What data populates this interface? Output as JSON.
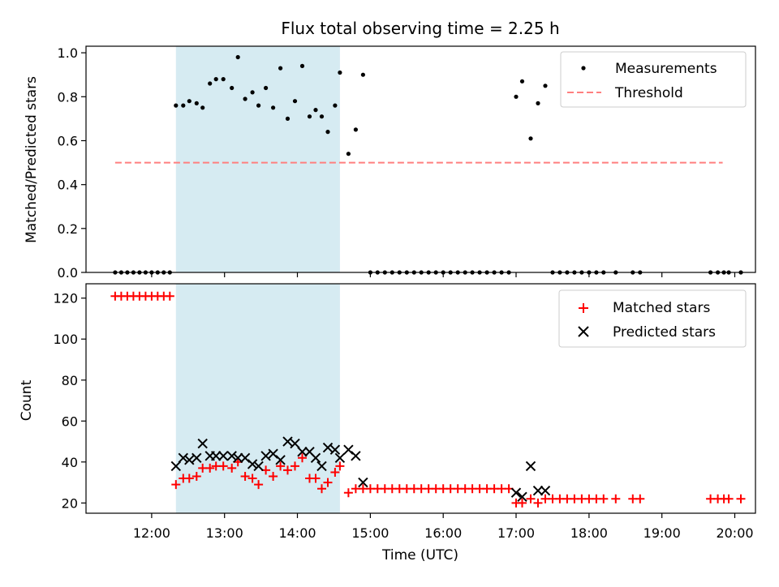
{
  "title": "Flux total observing time = 2.25 h",
  "colors": {
    "shade": "#add8e6",
    "threshold": "#ff7f7f",
    "matched": "#ff0000",
    "predicted": "#000000",
    "measurement": "#000000"
  },
  "chart_data": [
    {
      "type": "scatter",
      "ylabel": "Matched/Predicted stars",
      "xlim": [
        "11:06",
        "20:17"
      ],
      "ylim": [
        0,
        1.03
      ],
      "yticks": [
        "0.0",
        "0.2",
        "0.4",
        "0.6",
        "0.8",
        "1.0"
      ],
      "shaded_range": [
        "12:20",
        "14:35"
      ],
      "legend": {
        "position": "top-right",
        "entries": [
          "Measurements",
          "Threshold"
        ]
      },
      "threshold": {
        "name": "Threshold",
        "value": 0.5,
        "x_range": [
          "11:30",
          "19:50"
        ]
      },
      "series": [
        {
          "name": "Measurements",
          "points": [
            [
              "11:30",
              0
            ],
            [
              "11:35",
              0
            ],
            [
              "11:40",
              0
            ],
            [
              "11:45",
              0
            ],
            [
              "11:50",
              0
            ],
            [
              "11:55",
              0
            ],
            [
              "12:00",
              0
            ],
            [
              "12:05",
              0
            ],
            [
              "12:10",
              0
            ],
            [
              "12:15",
              0
            ],
            [
              "12:20",
              0.76
            ],
            [
              "12:26",
              0.76
            ],
            [
              "12:31",
              0.78
            ],
            [
              "12:37",
              0.77
            ],
            [
              "12:42",
              0.75
            ],
            [
              "12:48",
              0.86
            ],
            [
              "12:53",
              0.88
            ],
            [
              "12:59",
              0.88
            ],
            [
              "13:06",
              0.84
            ],
            [
              "13:11",
              0.98
            ],
            [
              "13:17",
              0.79
            ],
            [
              "13:23",
              0.82
            ],
            [
              "13:28",
              0.76
            ],
            [
              "13:34",
              0.84
            ],
            [
              "13:40",
              0.75
            ],
            [
              "13:46",
              0.93
            ],
            [
              "13:52",
              0.7
            ],
            [
              "13:58",
              0.78
            ],
            [
              "14:04",
              0.94
            ],
            [
              "14:10",
              0.71
            ],
            [
              "14:15",
              0.74
            ],
            [
              "14:20",
              0.71
            ],
            [
              "14:25",
              0.64
            ],
            [
              "14:31",
              0.76
            ],
            [
              "14:35",
              0.91
            ],
            [
              "14:42",
              0.54
            ],
            [
              "14:48",
              0.65
            ],
            [
              "14:54",
              0.9
            ],
            [
              "15:00",
              0
            ],
            [
              "15:06",
              0
            ],
            [
              "15:12",
              0
            ],
            [
              "15:18",
              0
            ],
            [
              "15:24",
              0
            ],
            [
              "15:30",
              0
            ],
            [
              "15:36",
              0
            ],
            [
              "15:42",
              0
            ],
            [
              "15:48",
              0
            ],
            [
              "15:54",
              0
            ],
            [
              "16:00",
              0
            ],
            [
              "16:06",
              0
            ],
            [
              "16:12",
              0
            ],
            [
              "16:18",
              0
            ],
            [
              "16:24",
              0
            ],
            [
              "16:30",
              0
            ],
            [
              "16:36",
              0
            ],
            [
              "16:42",
              0
            ],
            [
              "16:48",
              0
            ],
            [
              "16:54",
              0
            ],
            [
              "17:00",
              0.8
            ],
            [
              "17:05",
              0.87
            ],
            [
              "17:12",
              0.61
            ],
            [
              "17:18",
              0.77
            ],
            [
              "17:24",
              0.85
            ],
            [
              "17:30",
              0
            ],
            [
              "17:36",
              0
            ],
            [
              "17:42",
              0
            ],
            [
              "17:48",
              0
            ],
            [
              "17:54",
              0
            ],
            [
              "18:00",
              0
            ],
            [
              "18:06",
              0
            ],
            [
              "18:12",
              0
            ],
            [
              "18:22",
              0
            ],
            [
              "18:36",
              0
            ],
            [
              "18:42",
              0
            ],
            [
              "19:40",
              0
            ],
            [
              "19:46",
              0
            ],
            [
              "19:51",
              0
            ],
            [
              "19:55",
              0
            ],
            [
              "20:05",
              0
            ]
          ]
        }
      ]
    },
    {
      "type": "scatter",
      "xlabel": "Time (UTC)",
      "ylabel": "Count",
      "xlim": [
        "11:06",
        "20:17"
      ],
      "ylim": [
        15,
        127
      ],
      "xticks": [
        "12:00",
        "13:00",
        "14:00",
        "15:00",
        "16:00",
        "17:00",
        "18:00",
        "19:00",
        "20:00"
      ],
      "yticks": [
        "20",
        "40",
        "60",
        "80",
        "100",
        "120"
      ],
      "shaded_range": [
        "12:20",
        "14:35"
      ],
      "legend": {
        "position": "top-right",
        "entries": [
          "Matched stars",
          "Predicted stars"
        ]
      },
      "series": [
        {
          "name": "Matched stars",
          "marker": "plus",
          "points": [
            [
              "11:30",
              121
            ],
            [
              "11:35",
              121
            ],
            [
              "11:40",
              121
            ],
            [
              "11:45",
              121
            ],
            [
              "11:50",
              121
            ],
            [
              "11:55",
              121
            ],
            [
              "12:00",
              121
            ],
            [
              "12:05",
              121
            ],
            [
              "12:10",
              121
            ],
            [
              "12:15",
              121
            ],
            [
              "12:20",
              29
            ],
            [
              "12:26",
              32
            ],
            [
              "12:31",
              32
            ],
            [
              "12:37",
              33
            ],
            [
              "12:42",
              37
            ],
            [
              "12:48",
              37
            ],
            [
              "12:53",
              38
            ],
            [
              "12:59",
              38
            ],
            [
              "13:06",
              37
            ],
            [
              "13:11",
              40
            ],
            [
              "13:17",
              33
            ],
            [
              "13:23",
              32
            ],
            [
              "13:28",
              29
            ],
            [
              "13:34",
              36
            ],
            [
              "13:40",
              33
            ],
            [
              "13:46",
              38
            ],
            [
              "13:52",
              36
            ],
            [
              "13:58",
              38
            ],
            [
              "14:04",
              42
            ],
            [
              "14:10",
              32
            ],
            [
              "14:15",
              32
            ],
            [
              "14:20",
              27
            ],
            [
              "14:25",
              30
            ],
            [
              "14:31",
              35
            ],
            [
              "14:35",
              38
            ],
            [
              "14:42",
              25
            ],
            [
              "14:48",
              27
            ],
            [
              "14:54",
              27
            ],
            [
              "15:00",
              27
            ],
            [
              "15:06",
              27
            ],
            [
              "15:12",
              27
            ],
            [
              "15:18",
              27
            ],
            [
              "15:24",
              27
            ],
            [
              "15:30",
              27
            ],
            [
              "15:36",
              27
            ],
            [
              "15:42",
              27
            ],
            [
              "15:48",
              27
            ],
            [
              "15:54",
              27
            ],
            [
              "16:00",
              27
            ],
            [
              "16:06",
              27
            ],
            [
              "16:12",
              27
            ],
            [
              "16:18",
              27
            ],
            [
              "16:24",
              27
            ],
            [
              "16:30",
              27
            ],
            [
              "16:36",
              27
            ],
            [
              "16:42",
              27
            ],
            [
              "16:48",
              27
            ],
            [
              "16:54",
              27
            ],
            [
              "17:00",
              20
            ],
            [
              "17:05",
              20
            ],
            [
              "17:12",
              22
            ],
            [
              "17:18",
              20
            ],
            [
              "17:24",
              22
            ],
            [
              "17:30",
              22
            ],
            [
              "17:36",
              22
            ],
            [
              "17:42",
              22
            ],
            [
              "17:48",
              22
            ],
            [
              "17:54",
              22
            ],
            [
              "18:00",
              22
            ],
            [
              "18:06",
              22
            ],
            [
              "18:12",
              22
            ],
            [
              "18:22",
              22
            ],
            [
              "18:36",
              22
            ],
            [
              "18:42",
              22
            ],
            [
              "19:40",
              22
            ],
            [
              "19:46",
              22
            ],
            [
              "19:51",
              22
            ],
            [
              "19:55",
              22
            ],
            [
              "20:05",
              22
            ]
          ]
        },
        {
          "name": "Predicted stars",
          "marker": "x",
          "points": [
            [
              "12:20",
              38
            ],
            [
              "12:26",
              42
            ],
            [
              "12:31",
              41
            ],
            [
              "12:37",
              42
            ],
            [
              "12:42",
              49
            ],
            [
              "12:48",
              43
            ],
            [
              "12:53",
              43
            ],
            [
              "12:59",
              43
            ],
            [
              "13:06",
              43
            ],
            [
              "13:11",
              42
            ],
            [
              "13:17",
              42
            ],
            [
              "13:23",
              39
            ],
            [
              "13:28",
              38
            ],
            [
              "13:34",
              43
            ],
            [
              "13:40",
              44
            ],
            [
              "13:46",
              41
            ],
            [
              "13:52",
              50
            ],
            [
              "13:58",
              49
            ],
            [
              "14:04",
              45
            ],
            [
              "14:10",
              45
            ],
            [
              "14:15",
              42
            ],
            [
              "14:20",
              38
            ],
            [
              "14:25",
              47
            ],
            [
              "14:31",
              46
            ],
            [
              "14:35",
              42
            ],
            [
              "14:42",
              46
            ],
            [
              "14:48",
              43
            ],
            [
              "14:54",
              30
            ],
            [
              "17:00",
              25
            ],
            [
              "17:05",
              23
            ],
            [
              "17:12",
              38
            ],
            [
              "17:18",
              26
            ],
            [
              "17:24",
              26
            ]
          ]
        }
      ]
    }
  ]
}
